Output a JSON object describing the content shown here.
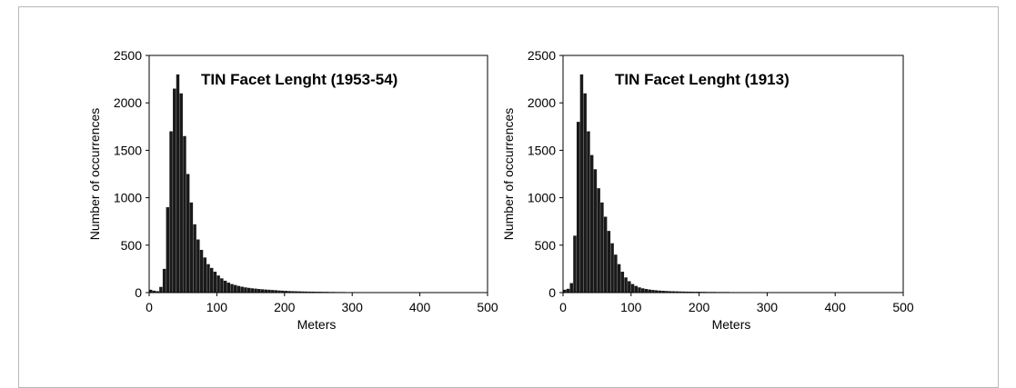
{
  "chart_data": [
    {
      "type": "bar",
      "title": "TIN Facet Lenght (1953-54)",
      "xlabel": "Meters",
      "ylabel": "Number of occurrences",
      "xlim": [
        0,
        500
      ],
      "ylim": [
        0,
        2500
      ],
      "xticks": [
        "0",
        "100",
        "200",
        "300",
        "400",
        "500"
      ],
      "yticks": [
        "0",
        "500",
        "1000",
        "1500",
        "2000",
        "2500"
      ],
      "grid": false,
      "bar_color": "#1a1a1a",
      "bin_width": 5,
      "x": [
        0,
        5,
        10,
        15,
        20,
        25,
        30,
        35,
        40,
        45,
        50,
        55,
        60,
        65,
        70,
        75,
        80,
        85,
        90,
        95,
        100,
        105,
        110,
        115,
        120,
        125,
        130,
        135,
        140,
        145,
        150,
        155,
        160,
        165,
        170,
        175,
        180,
        185,
        190,
        195,
        200,
        205,
        210,
        215,
        220,
        225,
        230,
        235,
        240,
        245,
        250,
        255,
        260,
        265,
        270,
        275,
        280,
        285,
        290,
        295,
        300,
        305,
        310,
        315,
        320,
        325,
        330,
        335,
        340,
        345,
        350,
        355,
        360,
        365,
        370,
        375,
        380,
        385,
        390,
        395,
        400,
        405,
        410,
        415,
        420,
        425,
        430,
        435,
        440,
        445,
        450,
        455,
        460,
        465,
        470,
        475,
        480,
        485,
        490,
        495
      ],
      "values": [
        30,
        20,
        15,
        60,
        250,
        900,
        1700,
        2150,
        2300,
        2100,
        1650,
        1250,
        950,
        720,
        560,
        450,
        370,
        300,
        260,
        220,
        180,
        150,
        125,
        105,
        90,
        80,
        70,
        62,
        55,
        50,
        45,
        42,
        38,
        35,
        32,
        30,
        27,
        25,
        22,
        20,
        18,
        16,
        15,
        14,
        13,
        12,
        11,
        10,
        10,
        9,
        9,
        8,
        8,
        7,
        7,
        6,
        6,
        6,
        5,
        5,
        5,
        5,
        4,
        4,
        4,
        4,
        4,
        3,
        3,
        3,
        3,
        3,
        3,
        3,
        2,
        2,
        2,
        2,
        2,
        2,
        2,
        2,
        2,
        2,
        2,
        1,
        1,
        1,
        1,
        1,
        1,
        1,
        1,
        1,
        1,
        1,
        1,
        1,
        1,
        1
      ]
    },
    {
      "type": "bar",
      "title": "TIN Facet Lenght (1913)",
      "xlabel": "Meters",
      "ylabel": "Number of occurrences",
      "xlim": [
        0,
        500
      ],
      "ylim": [
        0,
        2500
      ],
      "xticks": [
        "0",
        "100",
        "200",
        "300",
        "400",
        "500"
      ],
      "yticks": [
        "0",
        "500",
        "1000",
        "1500",
        "2000",
        "2500"
      ],
      "grid": false,
      "bar_color": "#1a1a1a",
      "bin_width": 5,
      "x": [
        0,
        5,
        10,
        15,
        20,
        25,
        30,
        35,
        40,
        45,
        50,
        55,
        60,
        65,
        70,
        75,
        80,
        85,
        90,
        95,
        100,
        105,
        110,
        115,
        120,
        125,
        130,
        135,
        140,
        145,
        150,
        155,
        160,
        165,
        170,
        175,
        180,
        185,
        190,
        195,
        200,
        205,
        210,
        215,
        220,
        225,
        230,
        235,
        240,
        245,
        250,
        255,
        260,
        265,
        270,
        275,
        280,
        285,
        290,
        295,
        300,
        305,
        310,
        315,
        320,
        325,
        330,
        335,
        340,
        345,
        350,
        355,
        360,
        365,
        370,
        375,
        380,
        385,
        390,
        395,
        400,
        405,
        410,
        415,
        420,
        425,
        430,
        435,
        440,
        445,
        450,
        455,
        460,
        465,
        470,
        475,
        480,
        485,
        490,
        495
      ],
      "values": [
        30,
        40,
        100,
        600,
        1800,
        2300,
        2100,
        1700,
        1450,
        1300,
        1100,
        950,
        800,
        650,
        520,
        400,
        300,
        220,
        160,
        120,
        90,
        70,
        55,
        45,
        38,
        32,
        28,
        24,
        21,
        19,
        17,
        15,
        14,
        13,
        12,
        11,
        10,
        10,
        9,
        9,
        8,
        8,
        7,
        7,
        7,
        6,
        6,
        6,
        6,
        5,
        5,
        5,
        5,
        5,
        5,
        4,
        4,
        4,
        4,
        4,
        4,
        4,
        4,
        4,
        4,
        4,
        4,
        4,
        4,
        3,
        3,
        3,
        3,
        3,
        3,
        3,
        3,
        3,
        3,
        3,
        3,
        3,
        3,
        3,
        3,
        3,
        3,
        3,
        3,
        3,
        3,
        3,
        3,
        3,
        3,
        3,
        3,
        3,
        3,
        3
      ]
    }
  ]
}
